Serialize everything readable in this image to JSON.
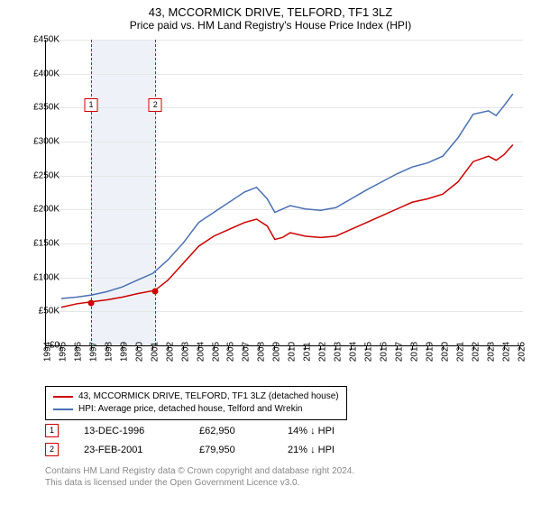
{
  "title": "43, MCCORMICK DRIVE, TELFORD, TF1 3LZ",
  "subtitle": "Price paid vs. HM Land Registry's House Price Index (HPI)",
  "chart": {
    "type": "line",
    "background_color": "#ffffff",
    "grid_color": "#e6e6e6",
    "axis_color": "#000000",
    "shade_color": "#eef2f8",
    "label_fontsize": 10,
    "title_fontsize": 13,
    "line_width": 1.5,
    "xlim": [
      1994,
      2025.2
    ],
    "x_ticks": [
      1994,
      1995,
      1996,
      1997,
      1998,
      1999,
      2000,
      2001,
      2002,
      2003,
      2004,
      2005,
      2006,
      2007,
      2008,
      2009,
      2010,
      2011,
      2012,
      2013,
      2014,
      2015,
      2016,
      2017,
      2018,
      2019,
      2020,
      2021,
      2022,
      2023,
      2024,
      2025
    ],
    "ylim": [
      0,
      450000
    ],
    "y_ticks": [
      0,
      50000,
      100000,
      150000,
      200000,
      250000,
      300000,
      350000,
      400000,
      450000
    ],
    "y_tick_labels": [
      "£0",
      "£50K",
      "£100K",
      "£150K",
      "£200K",
      "£250K",
      "£300K",
      "£350K",
      "£400K",
      "£450K"
    ],
    "shaded_ranges": [
      [
        1996.95,
        2001.15
      ]
    ],
    "tx_vlines": [
      {
        "x": 1996.95,
        "color": "#cc0000"
      },
      {
        "x": 2001.15,
        "color": "#cc0000"
      }
    ],
    "series": [
      {
        "name": "price_paid",
        "color": "#cc0000",
        "points": [
          [
            1995.0,
            55000
          ],
          [
            1996.0,
            60000
          ],
          [
            1996.95,
            62950
          ],
          [
            1998.0,
            66000
          ],
          [
            1999.0,
            70000
          ],
          [
            2000.0,
            75000
          ],
          [
            2001.15,
            79950
          ],
          [
            2002.0,
            95000
          ],
          [
            2003.0,
            120000
          ],
          [
            2004.0,
            145000
          ],
          [
            2005.0,
            160000
          ],
          [
            2006.0,
            170000
          ],
          [
            2007.0,
            180000
          ],
          [
            2007.8,
            185000
          ],
          [
            2008.5,
            175000
          ],
          [
            2009.0,
            155000
          ],
          [
            2009.5,
            158000
          ],
          [
            2010.0,
            165000
          ],
          [
            2011.0,
            160000
          ],
          [
            2012.0,
            158000
          ],
          [
            2013.0,
            160000
          ],
          [
            2014.0,
            170000
          ],
          [
            2015.0,
            180000
          ],
          [
            2016.0,
            190000
          ],
          [
            2017.0,
            200000
          ],
          [
            2018.0,
            210000
          ],
          [
            2019.0,
            215000
          ],
          [
            2020.0,
            222000
          ],
          [
            2021.0,
            240000
          ],
          [
            2022.0,
            270000
          ],
          [
            2023.0,
            278000
          ],
          [
            2023.5,
            272000
          ],
          [
            2024.0,
            280000
          ],
          [
            2024.6,
            295000
          ]
        ]
      },
      {
        "name": "hpi",
        "color": "#4a6fb3",
        "points": [
          [
            1995.0,
            68000
          ],
          [
            1996.0,
            70000
          ],
          [
            1997.0,
            73000
          ],
          [
            1998.0,
            78000
          ],
          [
            1999.0,
            85000
          ],
          [
            2000.0,
            95000
          ],
          [
            2001.0,
            105000
          ],
          [
            2002.0,
            125000
          ],
          [
            2003.0,
            150000
          ],
          [
            2004.0,
            180000
          ],
          [
            2005.0,
            195000
          ],
          [
            2006.0,
            210000
          ],
          [
            2007.0,
            225000
          ],
          [
            2007.8,
            232000
          ],
          [
            2008.5,
            215000
          ],
          [
            2009.0,
            195000
          ],
          [
            2010.0,
            205000
          ],
          [
            2011.0,
            200000
          ],
          [
            2012.0,
            198000
          ],
          [
            2013.0,
            202000
          ],
          [
            2014.0,
            215000
          ],
          [
            2015.0,
            228000
          ],
          [
            2016.0,
            240000
          ],
          [
            2017.0,
            252000
          ],
          [
            2018.0,
            262000
          ],
          [
            2019.0,
            268000
          ],
          [
            2020.0,
            278000
          ],
          [
            2021.0,
            305000
          ],
          [
            2022.0,
            340000
          ],
          [
            2023.0,
            345000
          ],
          [
            2023.5,
            338000
          ],
          [
            2024.0,
            352000
          ],
          [
            2024.6,
            370000
          ]
        ]
      }
    ],
    "tx_markers": [
      {
        "n": "1",
        "x": 1996.95,
        "y": 62950,
        "color": "#cc0000",
        "badge_top": 65
      },
      {
        "n": "2",
        "x": 2001.15,
        "y": 79950,
        "color": "#cc0000",
        "badge_top": 65
      }
    ]
  },
  "legend": [
    {
      "color": "#cc0000",
      "label": "43, MCCORMICK DRIVE, TELFORD, TF1 3LZ (detached house)"
    },
    {
      "color": "#4a6fb3",
      "label": "HPI: Average price, detached house, Telford and Wrekin"
    }
  ],
  "transactions": [
    {
      "n": "1",
      "date": "13-DEC-1996",
      "price": "£62,950",
      "diff": "14% ↓ HPI",
      "color": "#cc0000"
    },
    {
      "n": "2",
      "date": "23-FEB-2001",
      "price": "£79,950",
      "diff": "21% ↓ HPI",
      "color": "#cc0000"
    }
  ],
  "footer_line1": "Contains HM Land Registry data © Crown copyright and database right 2024.",
  "footer_line2": "This data is licensed under the Open Government Licence v3.0."
}
